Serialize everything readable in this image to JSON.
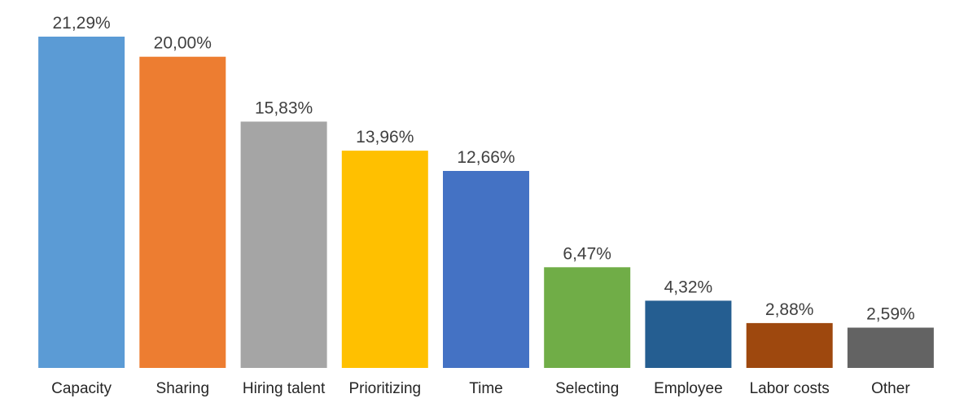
{
  "chart_data": {
    "type": "bar",
    "title": "",
    "xlabel": "",
    "ylabel": "",
    "ylim": [
      0,
      21.29
    ],
    "grid": false,
    "legend": "none",
    "categories": [
      "Capacity",
      "Sharing",
      "Hiring talent",
      "Prioritizing",
      "Time",
      "Selecting",
      "Employee",
      "Labor costs",
      "Other"
    ],
    "values": [
      21.29,
      20.0,
      15.83,
      13.96,
      12.66,
      6.47,
      4.32,
      2.88,
      2.59
    ],
    "value_labels": [
      "21,29%",
      "20,00%",
      "15,83%",
      "13,96%",
      "12,66%",
      "6,47%",
      "4,32%",
      "2,88%",
      "2,59%"
    ],
    "colors": [
      "#5B9BD5",
      "#ED7D31",
      "#A5A5A5",
      "#FFC000",
      "#4472C4",
      "#70AD47",
      "#255E91",
      "#9E480E",
      "#636363"
    ]
  }
}
